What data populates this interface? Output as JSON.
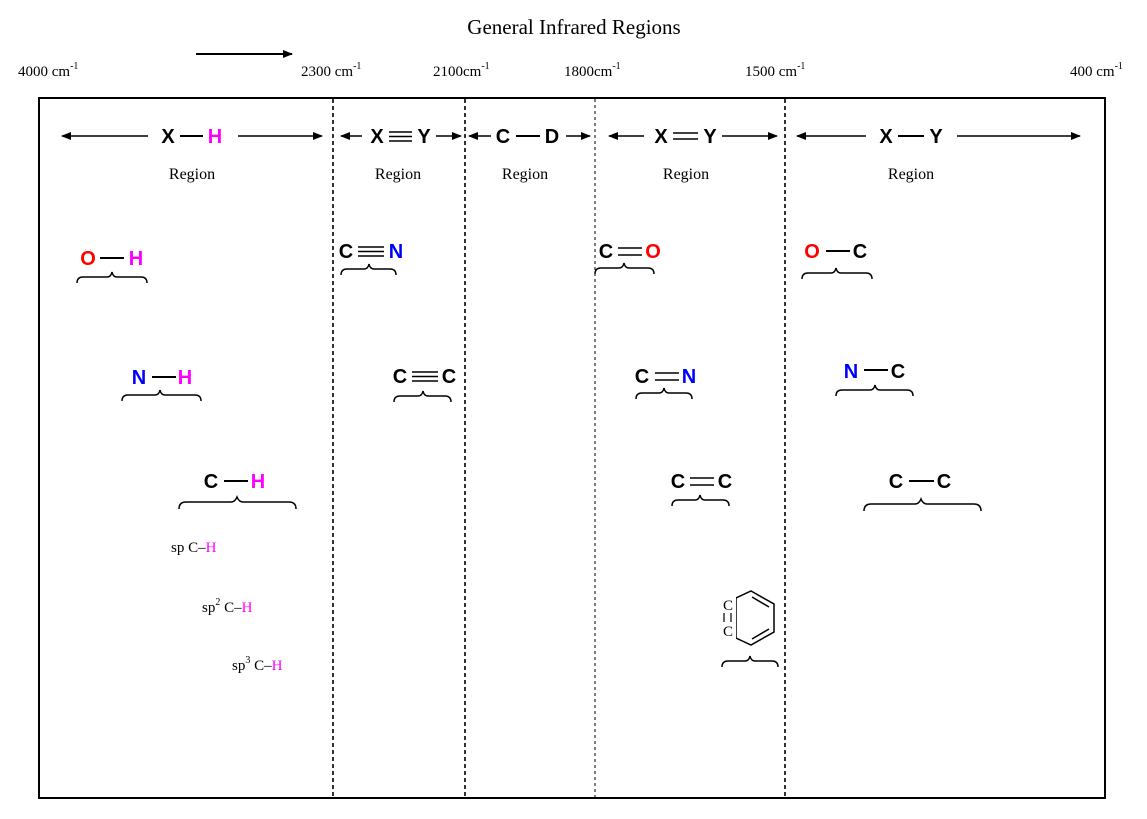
{
  "title": "General Infrared Regions",
  "colors": {
    "black": "#000000",
    "red": "#ff0000",
    "blue": "#0000ff",
    "magenta": "#ff00ff"
  },
  "axis_ticks": [
    {
      "num": "4000 cm",
      "exp": "-1"
    },
    {
      "num": "2300 cm",
      "exp": "-1"
    },
    {
      "num": "2100cm",
      "exp": "-1"
    },
    {
      "num": "1800cm",
      "exp": "-1"
    },
    {
      "num": "1500 cm",
      "exp": "-1"
    },
    {
      "num": "400 cm",
      "exp": "-1"
    }
  ],
  "regions": [
    {
      "a": "X",
      "b": "H",
      "bond": "single",
      "label": "Region"
    },
    {
      "a": "X",
      "b": "Y",
      "bond": "triple",
      "label": "Region"
    },
    {
      "a": "C",
      "b": "D",
      "bond": "single",
      "label": "Region"
    },
    {
      "a": "X",
      "b": "Y",
      "bond": "double",
      "label": "Region"
    },
    {
      "a": "X",
      "b": "Y",
      "bond": "single",
      "label": "Region"
    }
  ],
  "bonds": [
    {
      "a": "O",
      "b": "H",
      "order": 1
    },
    {
      "a": "N",
      "b": "H",
      "order": 1
    },
    {
      "a": "C",
      "b": "H",
      "order": 1
    },
    {
      "a": "C",
      "b": "N",
      "order": 3
    },
    {
      "a": "C",
      "b": "C",
      "order": 3
    },
    {
      "a": "C",
      "b": "O",
      "order": 2
    },
    {
      "a": "C",
      "b": "N",
      "order": 2
    },
    {
      "a": "C",
      "b": "C",
      "order": 2
    },
    {
      "a": "O",
      "b": "C",
      "order": 1
    },
    {
      "a": "N",
      "b": "C",
      "order": 1
    },
    {
      "a": "C",
      "b": "C",
      "order": 1
    }
  ],
  "sp_labels": [
    {
      "pre": "sp",
      "sup": "",
      "mid": " C–",
      "h": "H"
    },
    {
      "pre": "sp",
      "sup": "2",
      "mid": " C–",
      "h": "H"
    },
    {
      "pre": "sp",
      "sup": "3",
      "mid": " C–",
      "h": "H"
    }
  ],
  "aromatic": {
    "atoms": [
      "C",
      "C"
    ]
  }
}
